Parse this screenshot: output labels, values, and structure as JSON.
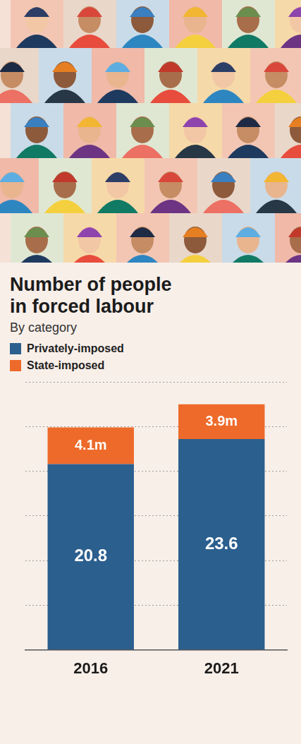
{
  "chart_data": {
    "type": "bar",
    "title": "Number of people in forced labour",
    "subtitle": "By category",
    "categories": [
      "2016",
      "2021"
    ],
    "series": [
      {
        "name": "Privately-imposed",
        "color": "#2b5f8e",
        "values": [
          20.8,
          23.6
        ]
      },
      {
        "name": "State-imposed",
        "color": "#ee6a2a",
        "values": [
          4.1,
          3.9
        ],
        "value_labels": [
          "4.1m",
          "3.9m"
        ]
      }
    ],
    "stacked": true,
    "data_labels": true,
    "grid": true,
    "legend": "top-left",
    "tick_labels": "x",
    "ylim": [
      0,
      30
    ],
    "yticks": [
      0,
      5,
      10,
      15,
      20,
      25,
      30
    ]
  }
}
